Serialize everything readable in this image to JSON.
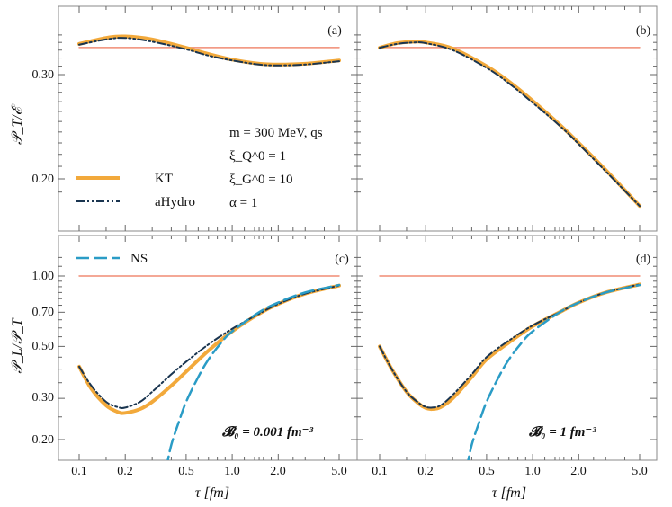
{
  "chart_data": [
    {
      "panel": "(a)",
      "type": "line",
      "ylabel": "𝒫_T/ℰ",
      "yticks": [
        "0.30",
        "0.20"
      ],
      "annotation": {
        "line1": "m = 300 MeV, qs",
        "line2": "ξ_Q^0 = 1",
        "line3": "ξ_G^0 = 10",
        "line4": "α = 1"
      },
      "legend": [
        {
          "name": "KT",
          "color": "#F2A93B",
          "style": "solid"
        },
        {
          "name": "aHydro",
          "color": "#1a3550",
          "style": "dash-dot-dot"
        }
      ],
      "series": [
        {
          "name": "reference",
          "x": [
            0.1,
            5.0
          ],
          "y": [
            0.3333,
            0.3333
          ]
        },
        {
          "name": "KT",
          "x": [
            0.1,
            0.15,
            0.2,
            0.3,
            0.5,
            0.7,
            1.0,
            1.5,
            2.0,
            3.0,
            5.0
          ],
          "y": [
            0.338,
            0.346,
            0.348,
            0.344,
            0.333,
            0.325,
            0.318,
            0.313,
            0.312,
            0.313,
            0.317
          ]
        },
        {
          "name": "aHydro",
          "x": [
            0.1,
            0.15,
            0.2,
            0.3,
            0.5,
            0.7,
            1.0,
            1.5,
            2.0,
            3.0,
            5.0
          ],
          "y": [
            0.337,
            0.344,
            0.346,
            0.341,
            0.331,
            0.323,
            0.317,
            0.312,
            0.311,
            0.312,
            0.316
          ]
        }
      ]
    },
    {
      "panel": "(b)",
      "type": "line",
      "series": [
        {
          "name": "reference",
          "x": [
            0.1,
            5.0
          ],
          "y": [
            0.3333,
            0.3333
          ]
        },
        {
          "name": "KT",
          "x": [
            0.1,
            0.13,
            0.17,
            0.2,
            0.3,
            0.5,
            0.7,
            1.0,
            1.5,
            2.0,
            3.0,
            5.0
          ],
          "y": [
            0.333,
            0.339,
            0.341,
            0.34,
            0.332,
            0.31,
            0.292,
            0.271,
            0.247,
            0.23,
            0.207,
            0.18
          ]
        },
        {
          "name": "aHydro",
          "x": [
            0.1,
            0.13,
            0.17,
            0.2,
            0.3,
            0.5,
            0.7,
            1.0,
            1.5,
            2.0,
            3.0,
            5.0
          ],
          "y": [
            0.333,
            0.338,
            0.34,
            0.339,
            0.33,
            0.308,
            0.29,
            0.269,
            0.246,
            0.229,
            0.206,
            0.18
          ]
        }
      ]
    },
    {
      "panel": "(c)",
      "type": "line",
      "ylabel": "𝒫_L/𝒫_T",
      "xlabel": "τ [fm]",
      "yticks": [
        "1.00",
        "0.70",
        "0.50",
        "0.30",
        "0.20"
      ],
      "xticks": [
        "0.1",
        "0.2",
        "0.5",
        "1.0",
        "2.0",
        "5.0"
      ],
      "annotation": "𝓑₀ = 0.001 fm⁻³",
      "legend": [
        {
          "name": "NS",
          "color": "#2a9cc6",
          "style": "dashed"
        }
      ],
      "series": [
        {
          "name": "reference",
          "x": [
            0.1,
            5.0
          ],
          "y": [
            1.0,
            1.0
          ]
        },
        {
          "name": "KT",
          "x": [
            0.1,
            0.12,
            0.15,
            0.18,
            0.2,
            0.25,
            0.3,
            0.4,
            0.5,
            0.7,
            1.0,
            1.5,
            2.0,
            3.0,
            5.0
          ],
          "y": [
            0.41,
            0.33,
            0.28,
            0.262,
            0.26,
            0.27,
            0.29,
            0.34,
            0.39,
            0.48,
            0.58,
            0.69,
            0.76,
            0.84,
            0.91
          ]
        },
        {
          "name": "aHydro",
          "x": [
            0.1,
            0.12,
            0.15,
            0.18,
            0.2,
            0.25,
            0.3,
            0.4,
            0.5,
            0.7,
            1.0,
            1.5,
            2.0,
            3.0,
            5.0
          ],
          "y": [
            0.41,
            0.34,
            0.29,
            0.275,
            0.274,
            0.29,
            0.32,
            0.38,
            0.43,
            0.51,
            0.595,
            0.69,
            0.76,
            0.84,
            0.91
          ]
        },
        {
          "name": "NS",
          "x": [
            0.37,
            0.4,
            0.45,
            0.5,
            0.6,
            0.7,
            0.85,
            1.0,
            1.5,
            2.0,
            3.0,
            5.0
          ],
          "y": [
            0.15,
            0.19,
            0.24,
            0.29,
            0.37,
            0.44,
            0.52,
            0.58,
            0.7,
            0.77,
            0.85,
            0.915
          ]
        }
      ]
    },
    {
      "panel": "(d)",
      "type": "line",
      "xlabel": "τ [fm]",
      "xticks": [
        "0.1",
        "0.2",
        "0.5",
        "1.0",
        "2.0",
        "5.0"
      ],
      "annotation": "𝓑₀ = 1 fm⁻³",
      "series": [
        {
          "name": "reference",
          "x": [
            0.1,
            5.0
          ],
          "y": [
            1.0,
            1.0
          ]
        },
        {
          "name": "KT",
          "x": [
            0.1,
            0.12,
            0.15,
            0.18,
            0.2,
            0.22,
            0.25,
            0.3,
            0.4,
            0.5,
            0.7,
            1.0,
            1.5,
            2.0,
            3.0,
            5.0
          ],
          "y": [
            0.5,
            0.4,
            0.32,
            0.285,
            0.273,
            0.27,
            0.275,
            0.3,
            0.37,
            0.44,
            0.52,
            0.61,
            0.7,
            0.77,
            0.85,
            0.92
          ]
        },
        {
          "name": "aHydro",
          "x": [
            0.1,
            0.12,
            0.15,
            0.18,
            0.2,
            0.22,
            0.25,
            0.3,
            0.4,
            0.5,
            0.7,
            1.0,
            1.5,
            2.0,
            3.0,
            5.0
          ],
          "y": [
            0.5,
            0.4,
            0.32,
            0.287,
            0.276,
            0.274,
            0.28,
            0.31,
            0.38,
            0.45,
            0.53,
            0.615,
            0.7,
            0.77,
            0.85,
            0.92
          ]
        },
        {
          "name": "NS",
          "x": [
            0.37,
            0.4,
            0.45,
            0.5,
            0.6,
            0.7,
            0.85,
            1.0,
            1.5,
            2.0,
            3.0,
            5.0
          ],
          "y": [
            0.15,
            0.19,
            0.24,
            0.29,
            0.37,
            0.44,
            0.52,
            0.58,
            0.7,
            0.77,
            0.85,
            0.915
          ]
        }
      ]
    }
  ]
}
